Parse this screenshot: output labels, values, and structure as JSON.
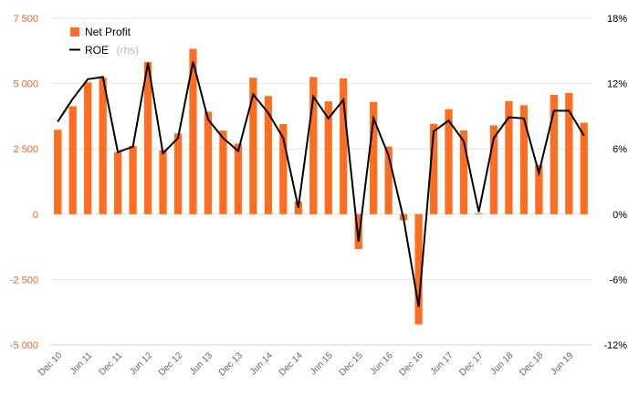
{
  "chart_data": {
    "type": "bar+line",
    "colors": {
      "bar": "#ff6d21",
      "line": "#000000",
      "left_axis_text": "#f26522",
      "grid": "#e6e6e6"
    },
    "legend": {
      "position": "top-left",
      "items": [
        {
          "label": "Net Profit",
          "suffix": "",
          "kind": "bar"
        },
        {
          "label": "ROE",
          "suffix": "(rhs)",
          "kind": "line"
        }
      ]
    },
    "y_left": {
      "min": -5000,
      "max": 7500,
      "ticks": [
        7500,
        5000,
        2500,
        0,
        -2500,
        -5000
      ],
      "tick_labels": [
        "7 500",
        "5 000",
        "2 500",
        "0",
        "-2 500",
        "-5 000"
      ]
    },
    "y_right": {
      "min": -12,
      "max": 18,
      "ticks": [
        18,
        12,
        6,
        0,
        -6,
        -12
      ],
      "tick_labels": [
        "18%",
        "12%",
        "6%",
        "0%",
        "-6%",
        "-12%"
      ]
    },
    "x_tick_labels": [
      {
        "index": 0,
        "label": "Dec 10"
      },
      {
        "index": 2,
        "label": "Jun 11"
      },
      {
        "index": 4,
        "label": "Dec 11"
      },
      {
        "index": 6,
        "label": "Jun 12"
      },
      {
        "index": 8,
        "label": "Dec 12"
      },
      {
        "index": 10,
        "label": "Jun 13"
      },
      {
        "index": 12,
        "label": "Dec 13"
      },
      {
        "index": 14,
        "label": "Jun 14"
      },
      {
        "index": 16,
        "label": "Dec 14"
      },
      {
        "index": 18,
        "label": "Jun 15"
      },
      {
        "index": 20,
        "label": "Dec 15"
      },
      {
        "index": 22,
        "label": "Jun 16"
      },
      {
        "index": 24,
        "label": "Dec 16"
      },
      {
        "index": 26,
        "label": "Jun 17"
      },
      {
        "index": 28,
        "label": "Dec 17"
      },
      {
        "index": 30,
        "label": "Jun 18"
      },
      {
        "index": 32,
        "label": "Dec 18"
      },
      {
        "index": 34,
        "label": "Jun 19"
      }
    ],
    "series": [
      {
        "name": "Net Profit",
        "axis": "left",
        "values": [
          3230,
          4130,
          5050,
          5220,
          2380,
          2620,
          5830,
          2450,
          3090,
          6330,
          3920,
          3200,
          2700,
          5220,
          4520,
          3450,
          480,
          5250,
          4320,
          5200,
          -1330,
          4300,
          2590,
          -230,
          -4220,
          3460,
          4020,
          3210,
          40,
          3400,
          4330,
          4170,
          1880,
          4570,
          4640,
          3500
        ]
      },
      {
        "name": "ROE",
        "axis": "right",
        "values": [
          8.5,
          10.6,
          12.4,
          12.6,
          5.7,
          6.2,
          13.9,
          5.6,
          7.0,
          14.0,
          8.7,
          7.0,
          5.8,
          11.0,
          9.3,
          7.0,
          0.6,
          10.8,
          8.8,
          10.5,
          -2.5,
          8.8,
          5.4,
          -0.4,
          -8.5,
          7.6,
          8.6,
          6.7,
          0.2,
          7.0,
          8.9,
          8.8,
          3.8,
          9.5,
          9.5,
          7.2
        ]
      }
    ]
  }
}
